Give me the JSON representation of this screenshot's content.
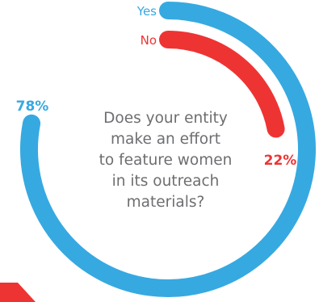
{
  "question": "Does your entity\nmake an effort\nto feature women\nin its outreach\nmaterials?",
  "chart_data": {
    "type": "pie",
    "style": "concentric radial rings",
    "series": [
      {
        "name": "Yes",
        "value": 78,
        "label": "78%",
        "color": "#36a9e1"
      },
      {
        "name": "No",
        "value": 22,
        "label": "22%",
        "color": "#ee3433"
      }
    ],
    "title": "Does your entity\nmake an effort\nto feature women\nin its outreach\nmaterials?"
  },
  "decor": {
    "accent_color": "#ee3433"
  }
}
